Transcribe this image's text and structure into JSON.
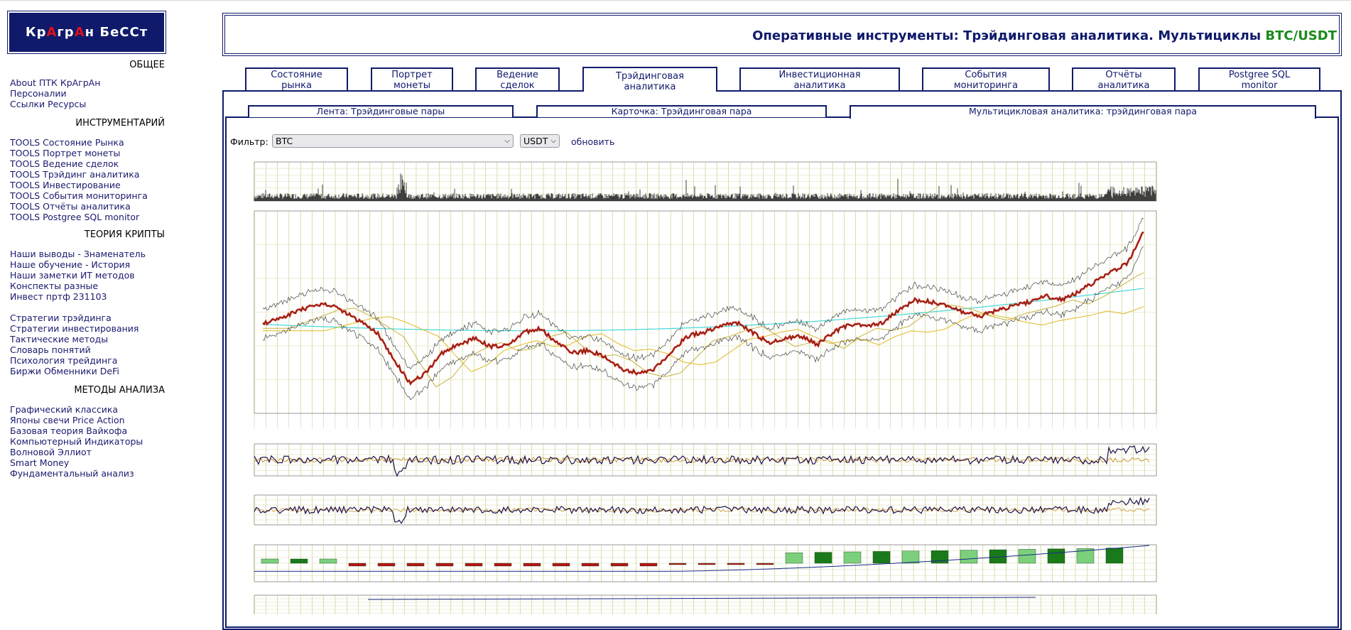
{
  "logo": {
    "part1": "Кр",
    "part2": "А",
    "part3": "гр",
    "part4": "А",
    "part5": "н БеССт"
  },
  "sidebar": {
    "sections": [
      {
        "title": "ОБЩЕЕ",
        "items": [
          "About ПТК КрАгрАн",
          "Персоналии",
          "Ссылки Ресурсы"
        ]
      },
      {
        "title": "ИНСТРУМЕНТАРИЙ",
        "items": [
          "TOOLS Состояние Рынка",
          "TOOLS Портрет монеты",
          "TOOLS Ведение сделок",
          "TOOLS Трэйдинг аналитика",
          "TOOLS Инвестирование",
          "TOOLS События мониторинга",
          "TOOLS Отчёты аналитика",
          "TOOLS Postgree SQL monitor"
        ]
      },
      {
        "title": "ТЕОРИЯ КРИПТЫ",
        "items": [
          "Наши выводы - Знаменатель",
          "Наше обучение - История",
          "Наши заметки ИТ методов",
          "Конспекты разные",
          "Инвест пртф 231103"
        ],
        "items2": [
          "Стратегии трэйдинга",
          "Стратегии инвестирования",
          "Тактические методы",
          "Словарь понятий",
          "Психология трейдинга",
          "Биржи Обменники DeFi"
        ]
      },
      {
        "title": "МЕТОДЫ АНАЛИЗА",
        "items": [
          "Графический классика",
          "Японы свечи Price Action",
          "Базовая теория Вайкофа",
          "Компьютерный Индикаторы",
          "Волновой Эллиот",
          "Smart Money",
          "Фундаментальный анализ"
        ]
      }
    ]
  },
  "header": {
    "title": "Оперативные инструменты: Трэйдинговая аналитика. Мультициклы ",
    "pair": "BTC/USDT"
  },
  "tabs": [
    {
      "l1": "Состояние",
      "l2": "рынка"
    },
    {
      "l1": "Портрет",
      "l2": "монеты"
    },
    {
      "l1": "Ведение",
      "l2": "сделок"
    },
    {
      "l1": "Трэйдинговая",
      "l2": "аналитика"
    },
    {
      "l1": "Инвестиционная",
      "l2": "аналитика"
    },
    {
      "l1": "События",
      "l2": "мониторинга"
    },
    {
      "l1": "Отчёты",
      "l2": "аналитика"
    },
    {
      "l1": "Postgree SQL",
      "l2": "monitor"
    }
  ],
  "subtabs": [
    "Лента: Трэйдинговые пары",
    "Карточка: Трэйдинговая пара",
    "Мультицикловая аналитика: трэйдинговая пара"
  ],
  "filter": {
    "label": "Фильтр:",
    "coin": "BTC",
    "quote": "USDT",
    "refresh": "обновить"
  },
  "colors": {
    "navy": "#0f1a6b",
    "red": "#e0101a",
    "green": "#1a8a1a",
    "grid": "#9fb030",
    "candle": "#c81818",
    "cyan": "#40d8d8",
    "ma": "#e0b820"
  }
}
